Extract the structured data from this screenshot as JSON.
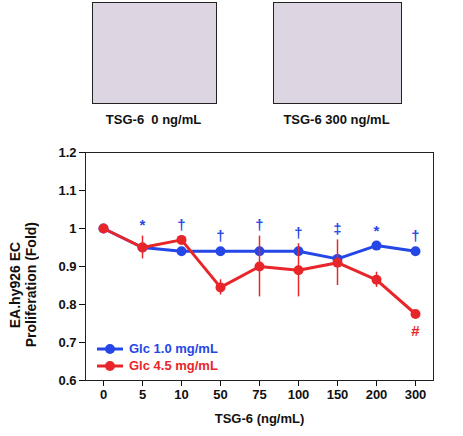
{
  "chart_data": {
    "type": "line",
    "image_captions": [
      "TSG-6  0 ng/mL",
      "TSG-6 300 ng/mL"
    ],
    "xlabel": "TSG-6 (ng/mL)",
    "ylabel": "EA.hy926 EC\nProliferation (Fold)",
    "categories": [
      "0",
      "5",
      "10",
      "50",
      "75",
      "100",
      "150",
      "200",
      "300"
    ],
    "series": [
      {
        "name": "Glc 1.0 mg/mL",
        "color": "#2447e6",
        "marker": "circle",
        "line_style": "solid",
        "values": [
          1.0,
          0.95,
          0.94,
          0.94,
          0.94,
          0.94,
          0.92,
          0.955,
          0.94
        ],
        "errors": [
          0.0,
          0.01,
          0.01,
          0.01,
          0.01,
          0.01,
          0.01,
          0.01,
          0.01
        ]
      },
      {
        "name": "Glc 4.5 mg/mL",
        "color": "#e8262a",
        "marker": "circle",
        "line_style": "solid",
        "values": [
          1.0,
          0.95,
          0.97,
          0.845,
          0.9,
          0.89,
          0.91,
          0.865,
          0.775
        ],
        "errors": [
          0.0,
          0.03,
          0.01,
          0.02,
          0.08,
          0.07,
          0.06,
          0.02,
          0.01
        ]
      }
    ],
    "annotations": [
      {
        "x": "5",
        "text": "*",
        "series": "Glc 1.0 mg/mL",
        "position": "above"
      },
      {
        "x": "10",
        "text": "†",
        "series": "Glc 1.0 mg/mL",
        "position": "above"
      },
      {
        "x": "50",
        "text": "†",
        "series": "Glc 1.0 mg/mL",
        "position": "above"
      },
      {
        "x": "75",
        "text": "†",
        "series": "Glc 1.0 mg/mL",
        "position": "above"
      },
      {
        "x": "100",
        "text": "†",
        "series": "Glc 1.0 mg/mL",
        "position": "above"
      },
      {
        "x": "150",
        "text": "‡",
        "series": "Glc 1.0 mg/mL",
        "position": "above"
      },
      {
        "x": "200",
        "text": "*",
        "series": "Glc 1.0 mg/mL",
        "position": "above"
      },
      {
        "x": "300",
        "text": "†",
        "series": "Glc 1.0 mg/mL",
        "position": "above"
      },
      {
        "x": "300",
        "text": "#",
        "series": "Glc 4.5 mg/mL",
        "position": "below"
      }
    ],
    "ylim": [
      0.6,
      1.2
    ],
    "yticks": [
      0.6,
      0.7,
      0.8,
      0.9,
      1,
      1.1,
      1.2
    ],
    "grid": false,
    "legend": "bottom-left"
  }
}
